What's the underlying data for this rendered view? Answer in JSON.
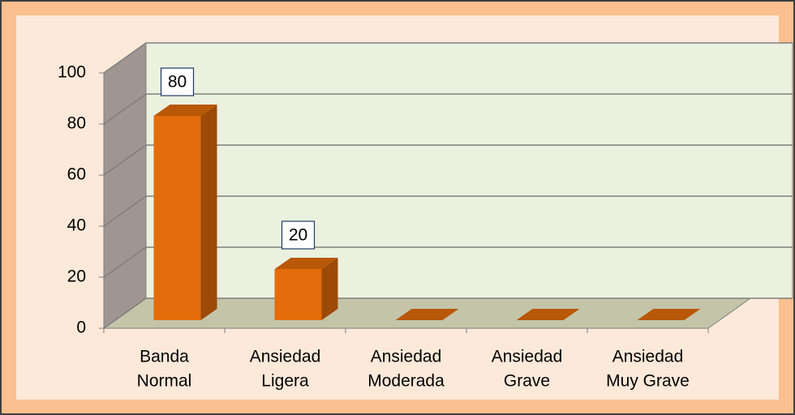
{
  "chart_data": {
    "type": "bar3d",
    "categories": [
      [
        "Banda",
        "Normal"
      ],
      [
        "Ansiedad",
        "Ligera"
      ],
      [
        "Ansiedad",
        "Moderada"
      ],
      [
        "Ansiedad",
        "Grave"
      ],
      [
        "Ansiedad",
        "Muy Grave"
      ]
    ],
    "values": [
      80,
      20,
      0,
      0,
      0
    ],
    "color": "#e46c0a",
    "ylim": [
      0,
      100
    ],
    "yticks": [
      0,
      20,
      40,
      60,
      80,
      100
    ],
    "grid": true
  }
}
